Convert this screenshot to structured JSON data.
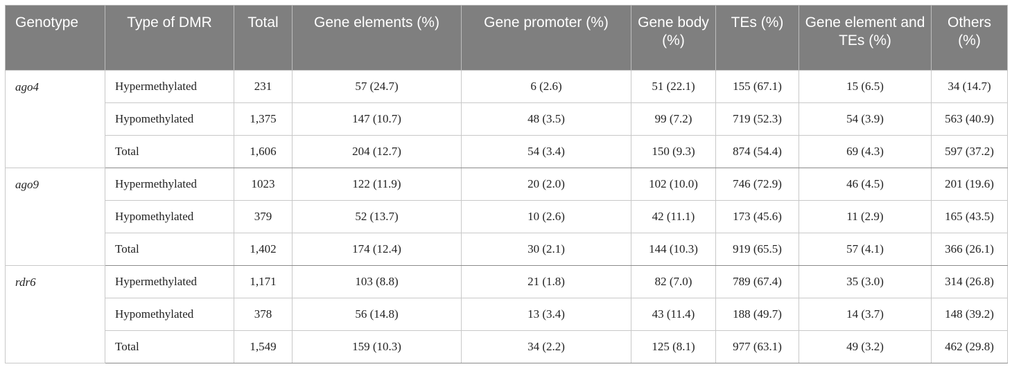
{
  "headers": [
    "Genotype",
    "Type of DMR",
    "Total",
    "Gene elements (%)",
    "Gene promoter (%)",
    "Gene body (%)",
    "TEs (%)",
    "Gene element and TEs (%)",
    "Others (%)"
  ],
  "groups": [
    {
      "genotype": "ago4",
      "rows": [
        [
          "Hypermethylated",
          "231",
          "57 (24.7)",
          "6 (2.6)",
          "51 (22.1)",
          "155 (67.1)",
          "15 (6.5)",
          "34 (14.7)"
        ],
        [
          "Hypomethylated",
          "1,375",
          "147 (10.7)",
          "48 (3.5)",
          "99 (7.2)",
          "719 (52.3)",
          "54 (3.9)",
          "563 (40.9)"
        ],
        [
          "Total",
          "1,606",
          "204 (12.7)",
          "54 (3.4)",
          "150 (9.3)",
          "874 (54.4)",
          "69 (4.3)",
          "597 (37.2)"
        ]
      ]
    },
    {
      "genotype": "ago9",
      "rows": [
        [
          "Hypermethylated",
          "1023",
          "122 (11.9)",
          "20 (2.0)",
          "102 (10.0)",
          "746 (72.9)",
          "46 (4.5)",
          "201 (19.6)"
        ],
        [
          "Hypomethylated",
          "379",
          "52 (13.7)",
          "10 (2.6)",
          "42 (11.1)",
          "173 (45.6)",
          "11 (2.9)",
          "165 (43.5)"
        ],
        [
          "Total",
          "1,402",
          "174 (12.4)",
          "30 (2.1)",
          "144 (10.3)",
          "919 (65.5)",
          "57 (4.1)",
          "366 (26.1)"
        ]
      ]
    },
    {
      "genotype": "rdr6",
      "rows": [
        [
          "Hypermethylated",
          "1,171",
          "103 (8.8)",
          "21 (1.8)",
          "82 (7.0)",
          "789 (67.4)",
          "35 (3.0)",
          "314 (26.8)"
        ],
        [
          "Hypomethylated",
          "378",
          "56 (14.8)",
          "13 (3.4)",
          "43 (11.4)",
          "188 (49.7)",
          "14 (3.7)",
          "148 (39.2)"
        ],
        [
          "Total",
          "1,549",
          "159 (10.3)",
          "34 (2.2)",
          "125 (8.1)",
          "977 (63.1)",
          "49 (3.2)",
          "462 (29.8)"
        ]
      ]
    }
  ]
}
